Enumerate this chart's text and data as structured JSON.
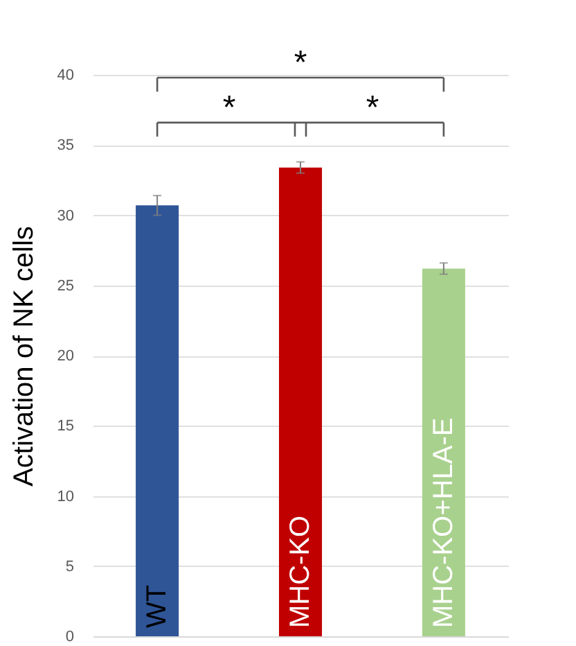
{
  "chart_data": {
    "type": "bar",
    "ylabel": "Activation of NK cells",
    "categories": [
      "WT",
      "MHC-KO",
      "MHC-KO+HLA-E"
    ],
    "values": [
      30.7,
      33.4,
      26.2
    ],
    "errors": [
      0.7,
      0.4,
      0.4
    ],
    "colors": [
      "#2f5597",
      "#c00000",
      "#a9d18e"
    ],
    "ylim": [
      0,
      40
    ],
    "yticks": [
      0,
      5,
      10,
      15,
      20,
      25,
      30,
      35,
      40
    ],
    "grid": "y",
    "tick_labels": "y",
    "annotations": [
      "*",
      "*",
      "*"
    ]
  }
}
